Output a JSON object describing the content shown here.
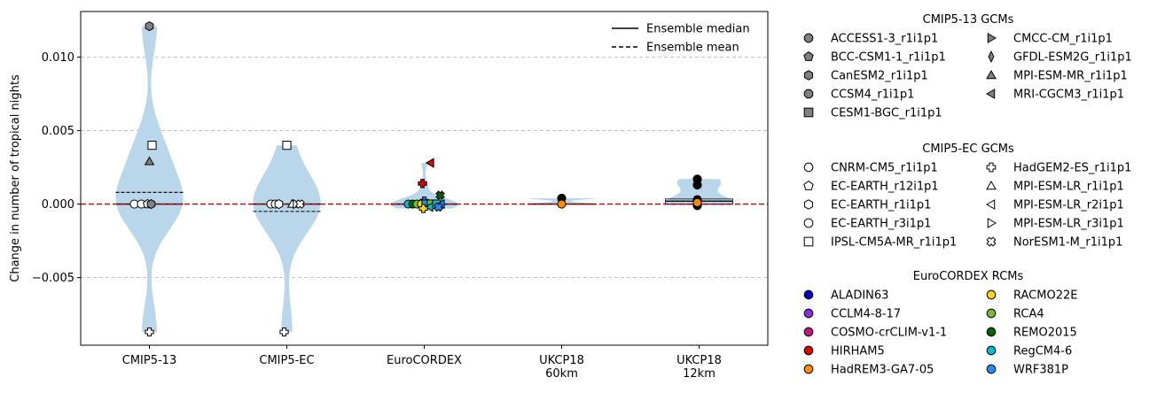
{
  "chart_data": {
    "type": "violin",
    "ylabel": "Change in number of tropical nights",
    "ylim": [
      -0.0096,
      0.0131
    ],
    "yticks": [
      -0.005,
      0.0,
      0.005,
      0.01
    ],
    "ytick_labels": [
      "−0.005",
      "0.000",
      "0.005",
      "0.010"
    ],
    "grid": "horizontal-dashed",
    "zero_line_color": "#c00000",
    "violin_color": "#bad6ea",
    "categories": [
      {
        "label": [
          "CMIP5-13"
        ],
        "median": 0.0,
        "mean": 0.0008
      },
      {
        "label": [
          "CMIP5-EC"
        ],
        "median": 0.0,
        "mean": -0.0005
      },
      {
        "label": [
          "EuroCORDEX"
        ],
        "median": 0.0,
        "mean": 0.0
      },
      {
        "label": [
          "UKCP18",
          "60km"
        ],
        "median": 0.0,
        "mean": 0.0
      },
      {
        "label": [
          "UKCP18",
          "12km"
        ],
        "median": 0.0002,
        "mean": 0.0002
      }
    ],
    "line_legend": [
      {
        "label": "Ensemble median",
        "style": "solid"
      },
      {
        "label": "Ensemble mean",
        "style": "dashed"
      }
    ],
    "legend_groups": [
      {
        "title": "CMIP5-13 GCMs",
        "items": [
          {
            "label": "ACCESS1-3_r1i1p1",
            "marker": "circle",
            "fill": "#808080"
          },
          {
            "label": "BCC-CSM1-1_r1i1p1",
            "marker": "pentagon",
            "fill": "#808080"
          },
          {
            "label": "CanESM2_r1i1p1",
            "marker": "hexagon",
            "fill": "#808080"
          },
          {
            "label": "CCSM4_r1i1p1",
            "marker": "octagon",
            "fill": "#808080"
          },
          {
            "label": "CESM1-BGC_r1i1p1",
            "marker": "square",
            "fill": "#808080"
          },
          {
            "label": "CMCC-CM_r1i1p1",
            "marker": "triangle-right",
            "fill": "#808080"
          },
          {
            "label": "GFDL-ESM2G_r1i1p1",
            "marker": "thin-diamond",
            "fill": "#808080"
          },
          {
            "label": "MPI-ESM-MR_r1i1p1",
            "marker": "triangle-up",
            "fill": "#808080"
          },
          {
            "label": "MRI-CGCM3_r1i1p1",
            "marker": "triangle-left",
            "fill": "#808080"
          }
        ]
      },
      {
        "title": "CMIP5-EC GCMs",
        "items": [
          {
            "label": "CNRM-CM5_r1i1p1",
            "marker": "circle",
            "fill": "#ffffff"
          },
          {
            "label": "EC-EARTH_r12i1p1",
            "marker": "pentagon",
            "fill": "#ffffff"
          },
          {
            "label": "EC-EARTH_r1i1p1",
            "marker": "hexagon",
            "fill": "#ffffff"
          },
          {
            "label": "EC-EARTH_r3i1p1",
            "marker": "octagon",
            "fill": "#ffffff"
          },
          {
            "label": "IPSL-CM5A-MR_r1i1p1",
            "marker": "square",
            "fill": "#ffffff"
          },
          {
            "label": "HadGEM2-ES_r1i1p1",
            "marker": "plus",
            "fill": "#ffffff"
          },
          {
            "label": "MPI-ESM-LR_r1i1p1",
            "marker": "triangle-up",
            "fill": "#ffffff"
          },
          {
            "label": "MPI-ESM-LR_r2i1p1",
            "marker": "triangle-left",
            "fill": "#ffffff"
          },
          {
            "label": "MPI-ESM-LR_r3i1p1",
            "marker": "triangle-right",
            "fill": "#ffffff"
          },
          {
            "label": "NorESM1-M_r1i1p1",
            "marker": "x-filled",
            "fill": "#ffffff"
          }
        ]
      },
      {
        "title": "EuroCORDEX RCMs",
        "items": [
          {
            "label": "ALADIN63",
            "marker": "circle",
            "fill": "#0000c0"
          },
          {
            "label": "CCLM4-8-17",
            "marker": "circle",
            "fill": "#8a2be2"
          },
          {
            "label": "COSMO-crCLIM-v1-1",
            "marker": "circle",
            "fill": "#c0187a"
          },
          {
            "label": "HIRHAM5",
            "marker": "circle",
            "fill": "#e00000"
          },
          {
            "label": "HadREM3-GA7-05",
            "marker": "circle",
            "fill": "#ff8c00"
          },
          {
            "label": "RACMO22E",
            "marker": "circle",
            "fill": "#ffd700"
          },
          {
            "label": "RCA4",
            "marker": "circle",
            "fill": "#7cbc2c"
          },
          {
            "label": "REMO2015",
            "marker": "circle",
            "fill": "#006400"
          },
          {
            "label": "RegCM4-6",
            "marker": "circle",
            "fill": "#00bcd4"
          },
          {
            "label": "WRF381P",
            "marker": "circle",
            "fill": "#1e90ff"
          }
        ]
      }
    ],
    "points": [
      {
        "cat": 0,
        "off": 0,
        "y": 0.0121,
        "marker": "hexagon",
        "fill": "#808080"
      },
      {
        "cat": 0,
        "off": 3,
        "y": 0.004,
        "marker": "square",
        "fill": "#ffffff"
      },
      {
        "cat": 0,
        "off": 0,
        "y": 0.0029,
        "marker": "triangle-up",
        "fill": "#808080"
      },
      {
        "cat": 0,
        "off": -17,
        "y": 0.0,
        "marker": "circle",
        "fill": "#ffffff"
      },
      {
        "cat": 0,
        "off": -9,
        "y": 0.0,
        "marker": "circle",
        "fill": "#ffffff"
      },
      {
        "cat": 0,
        "off": -2,
        "y": 0.0,
        "marker": "pentagon",
        "fill": "#ffffff"
      },
      {
        "cat": 0,
        "off": 2,
        "y": 0.0,
        "marker": "hexagon",
        "fill": "#808080"
      },
      {
        "cat": 0,
        "off": 0,
        "y": -0.0087,
        "marker": "plus",
        "fill": "#ffffff"
      },
      {
        "cat": 1,
        "off": 0,
        "y": 0.004,
        "marker": "square",
        "fill": "#ffffff"
      },
      {
        "cat": 1,
        "off": -18,
        "y": 0.0,
        "marker": "circle",
        "fill": "#ffffff"
      },
      {
        "cat": 1,
        "off": -13,
        "y": 0.0,
        "marker": "circle",
        "fill": "#ffffff"
      },
      {
        "cat": 1,
        "off": -9,
        "y": 0.0,
        "marker": "hexagon",
        "fill": "#ffffff"
      },
      {
        "cat": 1,
        "off": 6,
        "y": 0.0,
        "marker": "triangle-up",
        "fill": "#ffffff"
      },
      {
        "cat": 1,
        "off": 11,
        "y": 0.0,
        "marker": "triangle-right",
        "fill": "#ffffff"
      },
      {
        "cat": 1,
        "off": 15,
        "y": 0.0,
        "marker": "x-filled",
        "fill": "#ffffff"
      },
      {
        "cat": 1,
        "off": -3,
        "y": -0.0087,
        "marker": "plus",
        "fill": "#ffffff"
      },
      {
        "cat": 2,
        "off": 7,
        "y": 0.0028,
        "marker": "triangle-left",
        "fill": "#e00000"
      },
      {
        "cat": 2,
        "off": -2,
        "y": 0.0014,
        "marker": "plus",
        "fill": "#e00000"
      },
      {
        "cat": 2,
        "off": 18,
        "y": 0.0006,
        "marker": "x-filled",
        "fill": "#006400"
      },
      {
        "cat": 2,
        "off": 0,
        "y": 0.0002,
        "marker": "plus",
        "fill": "#1e90ff"
      },
      {
        "cat": 2,
        "off": -18,
        "y": 0.0,
        "marker": "circle",
        "fill": "#00bcd4"
      },
      {
        "cat": 2,
        "off": -13,
        "y": 0.0,
        "marker": "circle",
        "fill": "#006400"
      },
      {
        "cat": 2,
        "off": -8,
        "y": 0.0,
        "marker": "circle",
        "fill": "#7cbc2c"
      },
      {
        "cat": 2,
        "off": -3,
        "y": 0.0,
        "marker": "circle",
        "fill": "#ffd700"
      },
      {
        "cat": 2,
        "off": 2,
        "y": 0.0,
        "marker": "square",
        "fill": "#1e90ff"
      },
      {
        "cat": 2,
        "off": 8,
        "y": 0.0,
        "marker": "square",
        "fill": "#7cbc2c"
      },
      {
        "cat": 2,
        "off": 14,
        "y": 0.0,
        "marker": "square",
        "fill": "#00bcd4"
      },
      {
        "cat": 2,
        "off": 19,
        "y": 0.0,
        "marker": "triangle-left",
        "fill": "#1e90ff"
      },
      {
        "cat": 2,
        "off": 6,
        "y": -0.0002,
        "marker": "triangle-left",
        "fill": "#00bcd4"
      },
      {
        "cat": 2,
        "off": 16,
        "y": -0.0002,
        "marker": "x-filled",
        "fill": "#1e90ff"
      },
      {
        "cat": 2,
        "off": -1,
        "y": -0.0003,
        "marker": "plus",
        "fill": "#ffd700"
      },
      {
        "cat": 3,
        "off": 0,
        "y": 0.0004,
        "marker": "circle",
        "fill": "#000000"
      },
      {
        "cat": 3,
        "off": 0,
        "y": 0.0,
        "marker": "circle",
        "fill": "#ff8c00"
      },
      {
        "cat": 4,
        "off": -2,
        "y": 0.0017,
        "marker": "circle",
        "fill": "#000000"
      },
      {
        "cat": 4,
        "off": -2,
        "y": 0.0013,
        "marker": "circle",
        "fill": "#000000"
      },
      {
        "cat": 4,
        "off": -2,
        "y": 0.0003,
        "marker": "circle",
        "fill": "#000000"
      },
      {
        "cat": 4,
        "off": -2,
        "y": -0.0001,
        "marker": "circle",
        "fill": "#000000"
      },
      {
        "cat": 4,
        "off": -2,
        "y": 0.0001,
        "marker": "circle",
        "fill": "#ff8c00"
      }
    ]
  }
}
